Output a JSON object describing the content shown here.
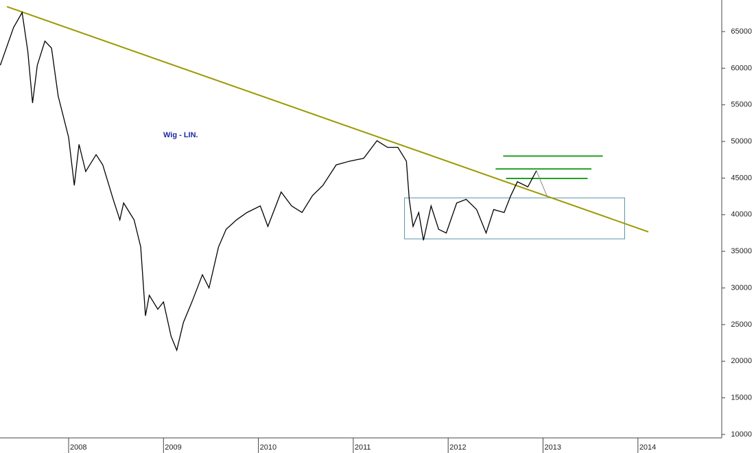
{
  "chart_data": {
    "type": "line",
    "annotation": "Wig - LIN.",
    "x": [
      2007.28,
      2007.42,
      2007.51,
      2007.57,
      2007.62,
      2007.67,
      2007.75,
      2007.82,
      2007.89,
      2008.0,
      2008.06,
      2008.11,
      2008.18,
      2008.29,
      2008.36,
      2008.47,
      2008.54,
      2008.58,
      2008.69,
      2008.76,
      2008.81,
      2008.85,
      2008.94,
      2009.0,
      2009.08,
      2009.14,
      2009.21,
      2009.3,
      2009.41,
      2009.48,
      2009.58,
      2009.66,
      2009.77,
      2009.88,
      2010.02,
      2010.1,
      2010.24,
      2010.35,
      2010.46,
      2010.57,
      2010.68,
      2010.82,
      2010.96,
      2011.11,
      2011.25,
      2011.36,
      2011.47,
      2011.56,
      2011.59,
      2011.63,
      2011.69,
      2011.74,
      2011.82,
      2011.9,
      2011.98,
      2012.09,
      2012.19,
      2012.3,
      2012.4,
      2012.48,
      2012.59,
      2012.66,
      2012.73,
      2012.84,
      2012.93
    ],
    "series": [
      {
        "color": "#000000",
        "values": [
          60400,
          65560,
          67600,
          62300,
          55250,
          60400,
          63700,
          62750,
          56200,
          50570,
          44000,
          49600,
          45900,
          48200,
          46800,
          42100,
          39300,
          41600,
          39300,
          35600,
          26200,
          29000,
          27100,
          28100,
          23400,
          21500,
          25300,
          28100,
          31800,
          30000,
          35600,
          38000,
          39300,
          40300,
          41200,
          38400,
          43100,
          41200,
          40300,
          42600,
          44000,
          46800,
          47300,
          47700,
          50100,
          49200,
          49200,
          47300,
          42100,
          38400,
          40300,
          36500,
          41200,
          38000,
          37500,
          41600,
          42100,
          40700,
          37500,
          40700,
          40300,
          42600,
          44500,
          43800,
          46000
        ]
      }
    ],
    "trendline": {
      "color": "#999900",
      "x": [
        2007.35,
        2014.11
      ],
      "values": [
        68400,
        37660
      ]
    },
    "box": {
      "color": "#5a8fa8",
      "x": [
        2011.54,
        2013.86
      ],
      "values": [
        42300,
        36700
      ]
    },
    "levels": {
      "color": "#22a022",
      "x": [
        [
          2012.58,
          2013.63
        ],
        [
          2012.5,
          2013.51
        ],
        [
          2012.61,
          2013.47
        ]
      ],
      "values": [
        48000,
        46250,
        44950
      ]
    },
    "projection": {
      "color": "#888888",
      "x": [
        2012.93,
        2013.04
      ],
      "values": [
        46000,
        42600
      ]
    },
    "xlim": [
      2007.277,
      2014.869
    ],
    "xticks": [
      2008,
      2009,
      2010,
      2011,
      2012,
      2013,
      2014
    ],
    "ylim": [
      9530,
      69310
    ],
    "yticks": [
      10000,
      15000,
      20000,
      25000,
      30000,
      35000,
      40000,
      45000,
      50000,
      55000,
      60000,
      65000
    ]
  }
}
